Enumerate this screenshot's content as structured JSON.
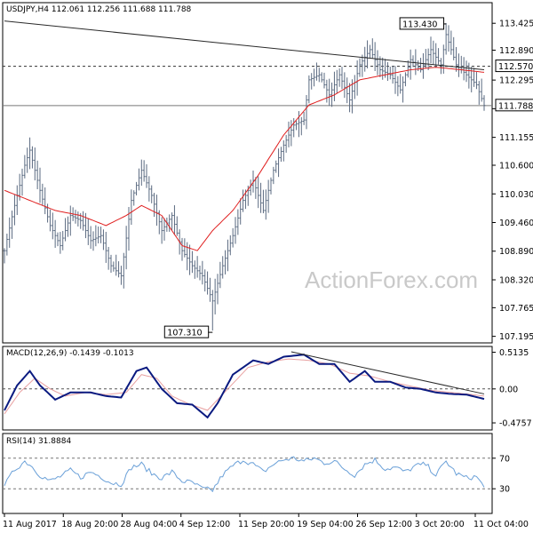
{
  "watermark": "ActionForex.com",
  "colors": {
    "price": "#5a6a80",
    "ma": "#e02020",
    "macd": "#0a1a80",
    "signal": "#e8a0a0",
    "rsi": "#6aa0d8",
    "trendline": "#2a2a2a",
    "level": "#333333"
  },
  "chart_data": [
    {
      "type": "ohlc",
      "header": "USDJPY,H4  112.061 112.256 111.688 111.788",
      "y_ticks": [
        113.425,
        112.89,
        112.295,
        111.725,
        111.155,
        110.6,
        110.03,
        109.46,
        108.89,
        108.32,
        107.765,
        107.195
      ],
      "y_tick_labels": [
        "113.425",
        "112.890",
        "112.295",
        "",
        "111.155",
        "110.600",
        "110.030",
        "109.460",
        "108.890",
        "108.320",
        "107.765",
        "107.195"
      ],
      "ylim": [
        107.1,
        113.8
      ],
      "x_labels": [
        "11 Aug 2017",
        "18 Aug 20:00",
        "28 Aug 04:00",
        "4 Sep 12:00",
        "11 Sep 20:00",
        "19 Sep 04:00",
        "26 Sep 12:00",
        "3 Oct 20:00",
        "11 Oct 04:00"
      ],
      "annotations": {
        "high_label": "113.430",
        "high_value": 113.43,
        "low_label": "107.310",
        "low_value": 107.31,
        "level_label": "112.570",
        "level_value": 112.57,
        "last_label": "111.788",
        "last_value": 111.788
      },
      "close_anchors": [
        [
          0,
          108.9
        ],
        [
          4,
          109.8
        ],
        [
          8,
          110.6
        ],
        [
          10,
          110.9
        ],
        [
          14,
          110.1
        ],
        [
          18,
          109.4
        ],
        [
          22,
          109.0
        ],
        [
          26,
          109.6
        ],
        [
          30,
          109.5
        ],
        [
          34,
          109.1
        ],
        [
          38,
          109.2
        ],
        [
          42,
          108.6
        ],
        [
          46,
          108.4
        ],
        [
          50,
          109.9
        ],
        [
          54,
          110.5
        ],
        [
          58,
          110.0
        ],
        [
          62,
          109.3
        ],
        [
          66,
          109.6
        ],
        [
          70,
          108.9
        ],
        [
          74,
          108.6
        ],
        [
          78,
          108.4
        ],
        [
          82,
          107.9
        ],
        [
          86,
          108.6
        ],
        [
          90,
          109.2
        ],
        [
          94,
          109.9
        ],
        [
          98,
          110.3
        ],
        [
          102,
          109.7
        ],
        [
          106,
          110.5
        ],
        [
          110,
          111.0
        ],
        [
          114,
          111.4
        ],
        [
          118,
          111.5
        ],
        [
          120,
          112.3
        ],
        [
          124,
          112.4
        ],
        [
          128,
          112.0
        ],
        [
          132,
          112.4
        ],
        [
          136,
          111.9
        ],
        [
          140,
          112.6
        ],
        [
          144,
          112.9
        ],
        [
          148,
          112.5
        ],
        [
          152,
          112.4
        ],
        [
          156,
          112.1
        ],
        [
          160,
          112.7
        ],
        [
          164,
          112.5
        ],
        [
          168,
          112.9
        ],
        [
          172,
          112.6
        ],
        [
          174,
          113.2
        ],
        [
          178,
          112.6
        ],
        [
          182,
          112.4
        ],
        [
          186,
          112.2
        ],
        [
          189,
          111.79
        ]
      ],
      "ma_anchors": [
        [
          0,
          110.1
        ],
        [
          10,
          109.9
        ],
        [
          20,
          109.7
        ],
        [
          30,
          109.6
        ],
        [
          40,
          109.4
        ],
        [
          48,
          109.6
        ],
        [
          54,
          109.8
        ],
        [
          62,
          109.6
        ],
        [
          70,
          109.0
        ],
        [
          76,
          108.9
        ],
        [
          82,
          109.3
        ],
        [
          90,
          109.7
        ],
        [
          100,
          110.4
        ],
        [
          110,
          111.2
        ],
        [
          120,
          111.8
        ],
        [
          130,
          112.0
        ],
        [
          140,
          112.3
        ],
        [
          150,
          112.4
        ],
        [
          160,
          112.5
        ],
        [
          170,
          112.55
        ],
        [
          180,
          112.5
        ],
        [
          189,
          112.45
        ]
      ],
      "trendline": [
        [
          0,
          113.47
        ],
        [
          189,
          112.5
        ]
      ],
      "moving_average_color": "#e02020"
    },
    {
      "type": "line",
      "header": "MACD(12,26,9) -0.1439 -0.1013",
      "y_ticks": [
        0.5135,
        0.0,
        -0.4757
      ],
      "y_tick_labels": [
        "0.5135",
        "0.00",
        "-0.4757"
      ],
      "ylim": [
        -0.55,
        0.57
      ],
      "zero_line": true,
      "macd_anchors": [
        [
          0,
          -0.3
        ],
        [
          5,
          0.05
        ],
        [
          10,
          0.25
        ],
        [
          14,
          0.05
        ],
        [
          20,
          -0.15
        ],
        [
          26,
          -0.05
        ],
        [
          34,
          -0.05
        ],
        [
          40,
          -0.1
        ],
        [
          46,
          -0.12
        ],
        [
          52,
          0.25
        ],
        [
          56,
          0.3
        ],
        [
          62,
          0.0
        ],
        [
          68,
          -0.2
        ],
        [
          74,
          -0.22
        ],
        [
          80,
          -0.4
        ],
        [
          84,
          -0.2
        ],
        [
          90,
          0.2
        ],
        [
          98,
          0.4
        ],
        [
          104,
          0.35
        ],
        [
          110,
          0.45
        ],
        [
          118,
          0.48
        ],
        [
          124,
          0.35
        ],
        [
          130,
          0.35
        ],
        [
          136,
          0.1
        ],
        [
          142,
          0.25
        ],
        [
          146,
          0.1
        ],
        [
          152,
          0.1
        ],
        [
          158,
          0.02
        ],
        [
          164,
          0.0
        ],
        [
          170,
          -0.05
        ],
        [
          176,
          -0.07
        ],
        [
          182,
          -0.08
        ],
        [
          189,
          -0.14
        ]
      ],
      "signal_anchors": [
        [
          0,
          -0.35
        ],
        [
          6,
          -0.05
        ],
        [
          12,
          0.15
        ],
        [
          18,
          0.0
        ],
        [
          24,
          -0.1
        ],
        [
          32,
          -0.05
        ],
        [
          40,
          -0.08
        ],
        [
          48,
          -0.05
        ],
        [
          54,
          0.2
        ],
        [
          60,
          0.15
        ],
        [
          66,
          -0.1
        ],
        [
          72,
          -0.2
        ],
        [
          80,
          -0.3
        ],
        [
          88,
          0.0
        ],
        [
          96,
          0.3
        ],
        [
          104,
          0.38
        ],
        [
          112,
          0.42
        ],
        [
          120,
          0.4
        ],
        [
          128,
          0.35
        ],
        [
          136,
          0.22
        ],
        [
          144,
          0.18
        ],
        [
          152,
          0.1
        ],
        [
          160,
          0.04
        ],
        [
          168,
          -0.02
        ],
        [
          176,
          -0.05
        ],
        [
          182,
          -0.07
        ],
        [
          189,
          -0.1
        ]
      ],
      "trendline": [
        [
          113,
          0.52
        ],
        [
          189,
          -0.07
        ]
      ]
    },
    {
      "type": "line",
      "header": "RSI(14) 31.8884",
      "y_ticks": [
        70,
        30
      ],
      "y_tick_labels": [
        "70",
        "30"
      ],
      "ylim": [
        0,
        100
      ],
      "levels": [
        70,
        30
      ],
      "rsi_anchors": [
        [
          0,
          34
        ],
        [
          4,
          55
        ],
        [
          8,
          66
        ],
        [
          10,
          62
        ],
        [
          14,
          48
        ],
        [
          18,
          40
        ],
        [
          22,
          46
        ],
        [
          26,
          54
        ],
        [
          30,
          45
        ],
        [
          34,
          52
        ],
        [
          38,
          46
        ],
        [
          42,
          38
        ],
        [
          46,
          36
        ],
        [
          50,
          58
        ],
        [
          54,
          62
        ],
        [
          58,
          50
        ],
        [
          62,
          44
        ],
        [
          66,
          52
        ],
        [
          70,
          40
        ],
        [
          74,
          38
        ],
        [
          78,
          30
        ],
        [
          82,
          28
        ],
        [
          86,
          48
        ],
        [
          90,
          60
        ],
        [
          94,
          68
        ],
        [
          98,
          62
        ],
        [
          102,
          52
        ],
        [
          106,
          62
        ],
        [
          110,
          68
        ],
        [
          114,
          70
        ],
        [
          118,
          66
        ],
        [
          122,
          70
        ],
        [
          126,
          64
        ],
        [
          130,
          66
        ],
        [
          134,
          56
        ],
        [
          138,
          48
        ],
        [
          142,
          62
        ],
        [
          146,
          68
        ],
        [
          150,
          56
        ],
        [
          154,
          58
        ],
        [
          158,
          52
        ],
        [
          162,
          60
        ],
        [
          166,
          62
        ],
        [
          170,
          48
        ],
        [
          174,
          66
        ],
        [
          178,
          50
        ],
        [
          182,
          44
        ],
        [
          186,
          46
        ],
        [
          189,
          32
        ]
      ]
    }
  ]
}
